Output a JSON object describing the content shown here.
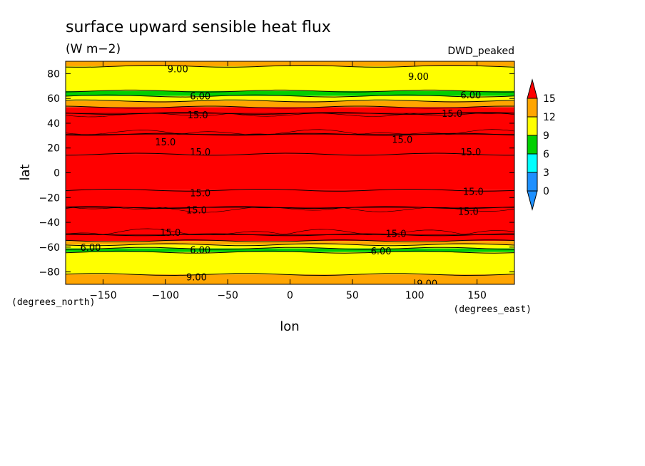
{
  "chart_data": {
    "type": "heatmap",
    "title": "surface upward sensible heat flux",
    "units": "(W m−2)",
    "dataset_label": "DWD_peaked",
    "xlabel": "lon",
    "ylabel": "lat",
    "x_unit_label": "(degrees_east)",
    "y_unit_label": "(degrees_north)",
    "xlim": [
      -180,
      180
    ],
    "ylim": [
      -90,
      90
    ],
    "x_ticks": [
      -150,
      -100,
      -50,
      0,
      50,
      100,
      150
    ],
    "x_tick_labels": [
      "−150",
      "−100",
      "−50",
      "0",
      "50",
      "100",
      "150"
    ],
    "y_ticks": [
      80,
      60,
      40,
      20,
      0,
      -20,
      -40,
      -60,
      -80
    ],
    "y_tick_labels": [
      "80",
      "60",
      "40",
      "20",
      "0",
      "−20",
      "−40",
      "−60",
      "−80"
    ],
    "colorbar": {
      "levels": [
        0,
        3,
        6,
        9,
        12,
        15
      ],
      "labels": [
        "0",
        "3",
        "6",
        "9",
        "12",
        "15"
      ],
      "colors": [
        "#1e90ff",
        "#00ffff",
        "#00d000",
        "#ffff00",
        "#ffa500",
        "#ff0000"
      ],
      "extend": "both"
    },
    "bands": [
      {
        "lat_top": 90,
        "lat_bottom": 86,
        "value": 10.5
      },
      {
        "lat_top": 86,
        "lat_bottom": 66,
        "value": 7.5
      },
      {
        "lat_top": 66,
        "lat_bottom": 62,
        "value": 4.5
      },
      {
        "lat_top": 62,
        "lat_bottom": 58,
        "value": 7.5
      },
      {
        "lat_top": 58,
        "lat_bottom": 53,
        "value": 10.5
      },
      {
        "lat_top": 53,
        "lat_bottom": 48,
        "value": 13.5
      },
      {
        "lat_top": 48,
        "lat_bottom": 31,
        "value": 16
      },
      {
        "lat_top": 31,
        "lat_bottom": 15,
        "value": 13.5
      },
      {
        "lat_top": 15,
        "lat_bottom": -14,
        "value": 16
      },
      {
        "lat_top": -14,
        "lat_bottom": -28,
        "value": 13.5
      },
      {
        "lat_top": -28,
        "lat_bottom": -50,
        "value": 16
      },
      {
        "lat_top": -50,
        "lat_bottom": -55,
        "value": 13.5
      },
      {
        "lat_top": -55,
        "lat_bottom": -58,
        "value": 10.5
      },
      {
        "lat_top": -58,
        "lat_bottom": -61,
        "value": 7.5
      },
      {
        "lat_top": -61,
        "lat_bottom": -64,
        "value": 4.5
      },
      {
        "lat_top": -64,
        "lat_bottom": -82,
        "value": 7.5
      },
      {
        "lat_top": -82,
        "lat_bottom": -90,
        "value": 10.5
      }
    ],
    "contour_labels": [
      {
        "text": "9.00",
        "lon": -90,
        "lat": 84
      },
      {
        "text": "9.00",
        "lon": 103,
        "lat": 78
      },
      {
        "text": "6.00",
        "lon": -72,
        "lat": 62
      },
      {
        "text": "6.00",
        "lon": 145,
        "lat": 63
      },
      {
        "text": "15.0",
        "lon": -74,
        "lat": 47
      },
      {
        "text": "15.0",
        "lon": 130,
        "lat": 48
      },
      {
        "text": "15.0",
        "lon": -100,
        "lat": 25
      },
      {
        "text": "15.0",
        "lon": 90,
        "lat": 27
      },
      {
        "text": "15.0",
        "lon": -72,
        "lat": 17
      },
      {
        "text": "15.0",
        "lon": 145,
        "lat": 17
      },
      {
        "text": "15.0",
        "lon": -72,
        "lat": -16
      },
      {
        "text": "15.0",
        "lon": 147,
        "lat": -15
      },
      {
        "text": "15.0",
        "lon": -75,
        "lat": -30
      },
      {
        "text": "15.0",
        "lon": 143,
        "lat": -31
      },
      {
        "text": "15.0",
        "lon": -96,
        "lat": -48
      },
      {
        "text": "15.0",
        "lon": 85,
        "lat": -49
      },
      {
        "text": "6.00",
        "lon": -160,
        "lat": -60
      },
      {
        "text": "6.00",
        "lon": -72,
        "lat": -62
      },
      {
        "text": "6.00",
        "lon": 73,
        "lat": -63
      },
      {
        "text": "9.00",
        "lon": -75,
        "lat": -84
      },
      {
        "text": "9.00",
        "lon": 110,
        "lat": -89
      }
    ]
  }
}
